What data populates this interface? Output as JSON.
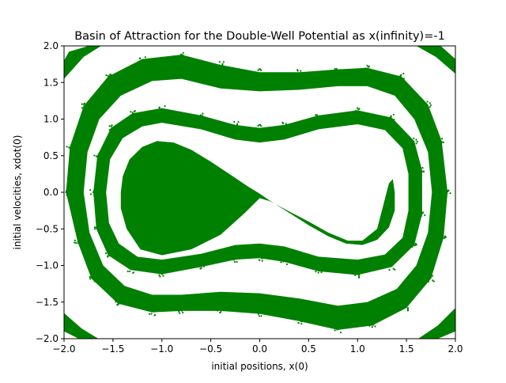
{
  "chart_data": {
    "type": "scatter",
    "title": "Basin of Attraction for the Double-Well Potential as x(infinity)=-1",
    "xlabel": "initial positions, x(0)",
    "ylabel": "initial velocities, xdot(0)",
    "xlim": [
      -2.0,
      2.0
    ],
    "ylim": [
      -2.0,
      2.0
    ],
    "xticks": [
      -2.0,
      -1.5,
      -1.0,
      -0.5,
      0.0,
      0.5,
      1.0,
      1.5,
      2.0
    ],
    "yticks": [
      -2.0,
      -1.5,
      -1.0,
      -0.5,
      0.0,
      0.5,
      1.0,
      1.5,
      2.0
    ],
    "xtick_labels": [
      "−2.0",
      "−1.5",
      "−1.0",
      "−0.5",
      "0.0",
      "0.5",
      "1.0",
      "1.5",
      "2.0"
    ],
    "ytick_labels": [
      "−2.0",
      "−1.5",
      "−1.0",
      "−0.5",
      "0.0",
      "0.5",
      "1.0",
      "1.5",
      "2.0"
    ],
    "grid": false,
    "marker_color": "#008000",
    "series": [
      {
        "region": "inner lobe around x=-1",
        "outline": [
          [
            -1.42,
            0.0
          ],
          [
            -1.4,
            0.22
          ],
          [
            -1.33,
            0.45
          ],
          [
            -1.2,
            0.62
          ],
          [
            -1.05,
            0.7
          ],
          [
            -0.88,
            0.68
          ],
          [
            -0.7,
            0.58
          ],
          [
            -0.5,
            0.42
          ],
          [
            -0.3,
            0.24
          ],
          [
            -0.12,
            0.08
          ],
          [
            0.0,
            -0.02
          ],
          [
            0.12,
            -0.13
          ],
          [
            0.3,
            -0.28
          ],
          [
            0.5,
            -0.45
          ],
          [
            0.7,
            -0.6
          ],
          [
            0.88,
            -0.7
          ],
          [
            1.05,
            -0.72
          ],
          [
            1.2,
            -0.65
          ],
          [
            1.32,
            -0.48
          ],
          [
            1.38,
            -0.25
          ],
          [
            1.38,
            0.0
          ],
          [
            1.38,
            0.0
          ],
          [
            1.36,
            0.18
          ],
          [
            1.32,
            0.12
          ],
          [
            1.2,
            -0.5
          ],
          [
            1.05,
            -0.66
          ],
          [
            0.9,
            -0.66
          ],
          [
            0.7,
            -0.55
          ],
          [
            0.5,
            -0.4
          ],
          [
            0.3,
            -0.26
          ],
          [
            0.1,
            -0.12
          ],
          [
            0.0,
            -0.08
          ],
          [
            -0.15,
            -0.28
          ],
          [
            -0.4,
            -0.58
          ],
          [
            -0.7,
            -0.78
          ],
          [
            -1.0,
            -0.86
          ],
          [
            -1.22,
            -0.78
          ],
          [
            -1.36,
            -0.5
          ],
          [
            -1.42,
            -0.22
          ]
        ]
      },
      {
        "region": "middle ring",
        "outer": [
          [
            -1.7,
            0.0
          ],
          [
            -1.66,
            0.5
          ],
          [
            -1.52,
            0.88
          ],
          [
            -1.3,
            1.08
          ],
          [
            -1.0,
            1.15
          ],
          [
            -0.6,
            1.05
          ],
          [
            -0.25,
            0.92
          ],
          [
            0.0,
            0.88
          ],
          [
            0.25,
            0.92
          ],
          [
            0.6,
            1.05
          ],
          [
            1.0,
            1.12
          ],
          [
            1.35,
            1.02
          ],
          [
            1.58,
            0.7
          ],
          [
            1.66,
            0.3
          ],
          [
            1.66,
            -0.3
          ],
          [
            1.58,
            -0.72
          ],
          [
            1.35,
            -1.02
          ],
          [
            1.0,
            -1.13
          ],
          [
            0.6,
            -1.08
          ],
          [
            0.25,
            -0.95
          ],
          [
            0.0,
            -0.9
          ],
          [
            -0.25,
            -0.92
          ],
          [
            -0.6,
            -1.02
          ],
          [
            -1.0,
            -1.12
          ],
          [
            -1.32,
            -1.06
          ],
          [
            -1.55,
            -0.86
          ],
          [
            -1.67,
            -0.5
          ]
        ],
        "inner": [
          [
            -1.57,
            0.0
          ],
          [
            -1.53,
            0.45
          ],
          [
            -1.4,
            0.74
          ],
          [
            -1.2,
            0.9
          ],
          [
            -1.0,
            0.95
          ],
          [
            -0.6,
            0.86
          ],
          [
            -0.25,
            0.72
          ],
          [
            0.0,
            0.68
          ],
          [
            0.25,
            0.72
          ],
          [
            0.6,
            0.86
          ],
          [
            1.0,
            0.93
          ],
          [
            1.28,
            0.85
          ],
          [
            1.46,
            0.6
          ],
          [
            1.52,
            0.25
          ],
          [
            1.52,
            -0.25
          ],
          [
            1.46,
            -0.62
          ],
          [
            1.28,
            -0.85
          ],
          [
            1.0,
            -0.92
          ],
          [
            0.6,
            -0.88
          ],
          [
            0.25,
            -0.74
          ],
          [
            0.0,
            -0.7
          ],
          [
            -0.25,
            -0.72
          ],
          [
            -0.6,
            -0.84
          ],
          [
            -1.0,
            -0.92
          ],
          [
            -1.25,
            -0.88
          ],
          [
            -1.44,
            -0.7
          ],
          [
            -1.54,
            -0.42
          ]
        ]
      },
      {
        "region": "outer ring",
        "outer": [
          [
            -1.98,
            0.0
          ],
          [
            -1.94,
            0.62
          ],
          [
            -1.8,
            1.18
          ],
          [
            -1.55,
            1.58
          ],
          [
            -1.2,
            1.82
          ],
          [
            -0.8,
            1.88
          ],
          [
            -0.4,
            1.74
          ],
          [
            0.0,
            1.64
          ],
          [
            0.4,
            1.64
          ],
          [
            0.8,
            1.68
          ],
          [
            1.1,
            1.7
          ],
          [
            1.45,
            1.58
          ],
          [
            1.72,
            1.2
          ],
          [
            1.86,
            0.7
          ],
          [
            1.92,
            0.0
          ],
          [
            1.88,
            -0.62
          ],
          [
            1.75,
            -1.18
          ],
          [
            1.5,
            -1.58
          ],
          [
            1.15,
            -1.82
          ],
          [
            0.8,
            -1.88
          ],
          [
            0.4,
            -1.76
          ],
          [
            0.0,
            -1.66
          ],
          [
            -0.4,
            -1.62
          ],
          [
            -0.8,
            -1.62
          ],
          [
            -1.1,
            -1.64
          ],
          [
            -1.45,
            -1.52
          ],
          [
            -1.72,
            -1.18
          ],
          [
            -1.86,
            -0.68
          ]
        ],
        "inner": [
          [
            -1.8,
            0.0
          ],
          [
            -1.76,
            0.55
          ],
          [
            -1.64,
            1.0
          ],
          [
            -1.42,
            1.32
          ],
          [
            -1.1,
            1.52
          ],
          [
            -0.8,
            1.55
          ],
          [
            -0.4,
            1.42
          ],
          [
            0.0,
            1.38
          ],
          [
            0.4,
            1.4
          ],
          [
            0.8,
            1.45
          ],
          [
            1.1,
            1.45
          ],
          [
            1.38,
            1.32
          ],
          [
            1.58,
            1.0
          ],
          [
            1.72,
            0.55
          ],
          [
            1.76,
            0.0
          ],
          [
            1.72,
            -0.55
          ],
          [
            1.6,
            -1.0
          ],
          [
            1.4,
            -1.32
          ],
          [
            1.1,
            -1.5
          ],
          [
            0.8,
            -1.55
          ],
          [
            0.4,
            -1.45
          ],
          [
            0.0,
            -1.38
          ],
          [
            -0.4,
            -1.36
          ],
          [
            -0.8,
            -1.4
          ],
          [
            -1.1,
            -1.4
          ],
          [
            -1.38,
            -1.28
          ],
          [
            -1.6,
            -1.0
          ],
          [
            -1.74,
            -0.55
          ]
        ]
      },
      {
        "region": "corner fragments",
        "patches": [
          [
            [
              -1.95,
              1.92
            ],
            [
              -1.75,
              2.0
            ],
            [
              -1.62,
              2.0
            ],
            [
              -1.8,
              1.85
            ],
            [
              -2.0,
              1.55
            ],
            [
              -2.0,
              1.8
            ]
          ],
          [
            [
              1.6,
              2.0
            ],
            [
              1.85,
              2.0
            ],
            [
              2.0,
              1.82
            ],
            [
              2.0,
              1.62
            ],
            [
              1.8,
              1.85
            ]
          ],
          [
            [
              -2.0,
              -1.65
            ],
            [
              -2.0,
              -1.9
            ],
            [
              -1.85,
              -2.0
            ],
            [
              -1.65,
              -2.0
            ],
            [
              -1.82,
              -1.86
            ]
          ],
          [
            [
              1.62,
              -2.0
            ],
            [
              1.82,
              -2.0
            ],
            [
              2.0,
              -1.9
            ],
            [
              2.0,
              -1.58
            ],
            [
              1.82,
              -1.82
            ]
          ]
        ]
      }
    ]
  }
}
